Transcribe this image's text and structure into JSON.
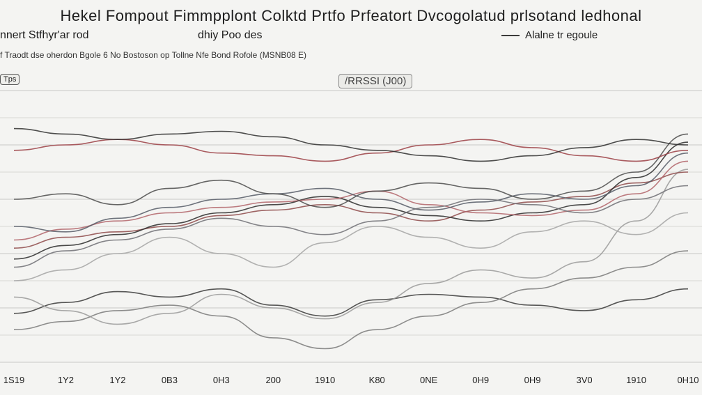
{
  "header": {
    "title": "Hekel Fompout Fimmpplont Colktd Prtfo Prfeatort Dvcogolatud prlsotand ledhonal",
    "subtitle_left": "nnert Stfhyr'ar rod",
    "subtitle_mid": "dhiy Poo des",
    "legend_label": "Alalne tr egoule",
    "note": "f Traodt dse oherdon Bgole 6 No Bostoson op Tollne Nfe Bond Rofole (MSNB08 E)",
    "tag": "Tps",
    "annotation": "/RRSSI (J00)"
  },
  "chart_data": {
    "type": "line",
    "x_tick_labels": [
      "1S19",
      "1Y2",
      "1Y2",
      "0B3",
      "0H3",
      "200",
      "1910",
      "K80",
      "0NE",
      "0H9",
      "0H9",
      "3V0",
      "1910",
      "0H10"
    ],
    "series": [
      {
        "color": "#3a3a3a",
        "values": [
          0.18,
          0.22,
          0.26,
          0.24,
          0.27,
          0.21,
          0.17,
          0.23,
          0.25,
          0.24,
          0.21,
          0.19,
          0.23,
          0.27
        ]
      },
      {
        "color": "#7a7a7a",
        "values": [
          0.12,
          0.15,
          0.19,
          0.21,
          0.17,
          0.09,
          0.05,
          0.12,
          0.17,
          0.22,
          0.27,
          0.31,
          0.35,
          0.41
        ]
      },
      {
        "color": "#9a9a9a",
        "values": [
          0.24,
          0.19,
          0.14,
          0.18,
          0.25,
          0.2,
          0.16,
          0.22,
          0.29,
          0.34,
          0.31,
          0.37,
          0.52,
          0.71
        ]
      },
      {
        "color": "#8e4a4a",
        "values": [
          0.42,
          0.46,
          0.48,
          0.5,
          0.54,
          0.56,
          0.58,
          0.55,
          0.52,
          0.56,
          0.59,
          0.61,
          0.66,
          0.7
        ]
      },
      {
        "color": "#2a2a2a",
        "values": [
          0.38,
          0.43,
          0.47,
          0.51,
          0.55,
          0.58,
          0.61,
          0.57,
          0.54,
          0.52,
          0.55,
          0.58,
          0.68,
          0.81
        ]
      },
      {
        "color": "#b2646a",
        "values": [
          0.45,
          0.49,
          0.52,
          0.55,
          0.57,
          0.59,
          0.6,
          0.63,
          0.58,
          0.55,
          0.54,
          0.56,
          0.62,
          0.74
        ]
      },
      {
        "color": "#555a66",
        "values": [
          0.5,
          0.48,
          0.53,
          0.57,
          0.6,
          0.62,
          0.64,
          0.6,
          0.56,
          0.59,
          0.62,
          0.6,
          0.65,
          0.77
        ]
      },
      {
        "color": "#4b4b4b",
        "values": [
          0.6,
          0.62,
          0.58,
          0.64,
          0.67,
          0.62,
          0.57,
          0.63,
          0.66,
          0.64,
          0.6,
          0.63,
          0.7,
          0.84
        ]
      },
      {
        "color": "#9b3e44",
        "values": [
          0.78,
          0.8,
          0.82,
          0.8,
          0.77,
          0.76,
          0.74,
          0.77,
          0.8,
          0.82,
          0.79,
          0.76,
          0.74,
          0.78
        ]
      },
      {
        "color": "#2f2f2f",
        "values": [
          0.86,
          0.84,
          0.82,
          0.84,
          0.85,
          0.83,
          0.8,
          0.78,
          0.76,
          0.74,
          0.76,
          0.79,
          0.82,
          0.8
        ]
      },
      {
        "color": "#a5a5a5",
        "values": [
          0.3,
          0.34,
          0.4,
          0.46,
          0.4,
          0.35,
          0.44,
          0.5,
          0.46,
          0.42,
          0.48,
          0.52,
          0.47,
          0.55
        ]
      },
      {
        "color": "#6e6e74",
        "values": [
          0.35,
          0.41,
          0.45,
          0.49,
          0.53,
          0.5,
          0.47,
          0.52,
          0.57,
          0.6,
          0.58,
          0.55,
          0.6,
          0.65
        ]
      }
    ],
    "ylim": [
      0,
      1
    ]
  }
}
